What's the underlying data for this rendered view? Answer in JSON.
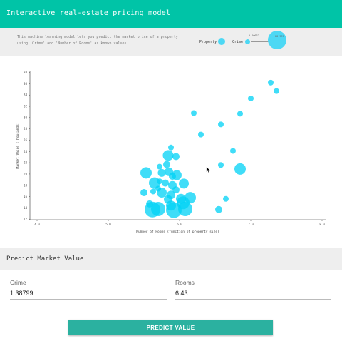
{
  "header": {
    "title": "Interactive real-estate pricing model"
  },
  "intro": {
    "description": "This machine learning model lets you predict the market price of a property using 'Crime' and 'Number of Rooms' as known values.",
    "legend": {
      "property_label": "Property -",
      "crime_label": "Crime -",
      "crime_min": "0.00632",
      "crime_max": "88.976"
    }
  },
  "chart_data": {
    "type": "scatter",
    "xlabel": "Number of Rooms (function of property size)",
    "ylabel": "Market Value (Thousands)",
    "xlim": [
      3.9,
      8.05
    ],
    "ylim": [
      11.9,
      38.2
    ],
    "x_ticks": [
      "4.0",
      "5.0",
      "6.0",
      "7.0",
      "8.0"
    ],
    "y_ticks": [
      "12",
      "14",
      "16",
      "18",
      "20",
      "22",
      "24",
      "26",
      "28",
      "30",
      "32",
      "34",
      "36",
      "38"
    ],
    "color": "#00d2f5",
    "point_sizes_encode": "Crime",
    "points": [
      {
        "x": 7.28,
        "y": 36.2,
        "r": 4
      },
      {
        "x": 7.36,
        "y": 34.7,
        "r": 4
      },
      {
        "x": 7.0,
        "y": 33.4,
        "r": 4
      },
      {
        "x": 6.2,
        "y": 30.8,
        "r": 4
      },
      {
        "x": 6.85,
        "y": 30.7,
        "r": 4
      },
      {
        "x": 6.58,
        "y": 28.8,
        "r": 4
      },
      {
        "x": 6.3,
        "y": 27.0,
        "r": 4
      },
      {
        "x": 5.88,
        "y": 24.7,
        "r": 4
      },
      {
        "x": 6.75,
        "y": 24.1,
        "r": 4
      },
      {
        "x": 5.84,
        "y": 23.3,
        "r": 7.5
      },
      {
        "x": 5.95,
        "y": 23.1,
        "r": 5
      },
      {
        "x": 6.58,
        "y": 21.6,
        "r": 4
      },
      {
        "x": 6.85,
        "y": 20.9,
        "r": 8
      },
      {
        "x": 5.82,
        "y": 21.7,
        "r": 5
      },
      {
        "x": 5.72,
        "y": 21.3,
        "r": 4
      },
      {
        "x": 5.53,
        "y": 20.2,
        "r": 8
      },
      {
        "x": 5.75,
        "y": 20.2,
        "r": 5.5
      },
      {
        "x": 5.85,
        "y": 20.4,
        "r": 6
      },
      {
        "x": 5.9,
        "y": 19.6,
        "r": 5
      },
      {
        "x": 5.96,
        "y": 19.8,
        "r": 7
      },
      {
        "x": 5.72,
        "y": 18.7,
        "r": 4
      },
      {
        "x": 5.65,
        "y": 18.4,
        "r": 8
      },
      {
        "x": 5.9,
        "y": 18.0,
        "r": 6
      },
      {
        "x": 5.7,
        "y": 17.4,
        "r": 4
      },
      {
        "x": 6.06,
        "y": 18.3,
        "r": 7
      },
      {
        "x": 5.8,
        "y": 18.4,
        "r": 5
      },
      {
        "x": 5.63,
        "y": 16.9,
        "r": 4
      },
      {
        "x": 5.75,
        "y": 16.7,
        "r": 7
      },
      {
        "x": 5.95,
        "y": 17.2,
        "r": 5
      },
      {
        "x": 5.88,
        "y": 16.3,
        "r": 6
      },
      {
        "x": 6.15,
        "y": 15.8,
        "r": 8
      },
      {
        "x": 5.84,
        "y": 15.5,
        "r": 6
      },
      {
        "x": 6.02,
        "y": 15.6,
        "r": 7
      },
      {
        "x": 6.05,
        "y": 14.9,
        "r": 9
      },
      {
        "x": 5.58,
        "y": 14.7,
        "r": 5
      },
      {
        "x": 5.62,
        "y": 13.7,
        "r": 11
      },
      {
        "x": 5.7,
        "y": 13.8,
        "r": 10
      },
      {
        "x": 5.92,
        "y": 13.6,
        "r": 11
      },
      {
        "x": 6.08,
        "y": 13.8,
        "r": 10
      },
      {
        "x": 6.55,
        "y": 13.7,
        "r": 5
      },
      {
        "x": 6.65,
        "y": 15.6,
        "r": 4
      },
      {
        "x": 5.88,
        "y": 14.4,
        "r": 7
      },
      {
        "x": 5.5,
        "y": 16.7,
        "r": 5
      }
    ]
  },
  "predict": {
    "heading": "Predict Market Value",
    "crime_label": "Crime",
    "crime_value": "1.38799",
    "rooms_label": "Rooms",
    "rooms_value": "6.43",
    "button_label": "PREDICT VALUE"
  }
}
